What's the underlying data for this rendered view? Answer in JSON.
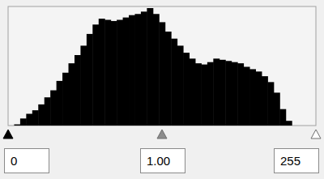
{
  "chart_data": {
    "type": "histogram",
    "bins": [
      0,
      5,
      10,
      15,
      20,
      25,
      30,
      35,
      40,
      45,
      50,
      55,
      60,
      65,
      70,
      75,
      80,
      85,
      90,
      95,
      100,
      105,
      110,
      115,
      120,
      125,
      130,
      135,
      140,
      145,
      150,
      155,
      160,
      165,
      170,
      175,
      180,
      185,
      190,
      195,
      200,
      205,
      210,
      215,
      220,
      225,
      230,
      235,
      240,
      245,
      250,
      255
    ],
    "counts": [
      0,
      1,
      6,
      10,
      13,
      18,
      24,
      30,
      38,
      45,
      53,
      60,
      68,
      78,
      86,
      91,
      90,
      89,
      90,
      92,
      94,
      95,
      97,
      100,
      95,
      88,
      80,
      74,
      68,
      62,
      57,
      53,
      52,
      54,
      57,
      56,
      55,
      54,
      53,
      50,
      48,
      46,
      42,
      37,
      28,
      14,
      4,
      0,
      0,
      0,
      0
    ],
    "color": "#000000",
    "xlim": [
      0,
      255
    ],
    "ylim": [
      0,
      100
    ],
    "tick_labels": false,
    "input_black": 0,
    "gamma": {
      "value": 1,
      "label": "1.00"
    },
    "input_white": 255
  }
}
